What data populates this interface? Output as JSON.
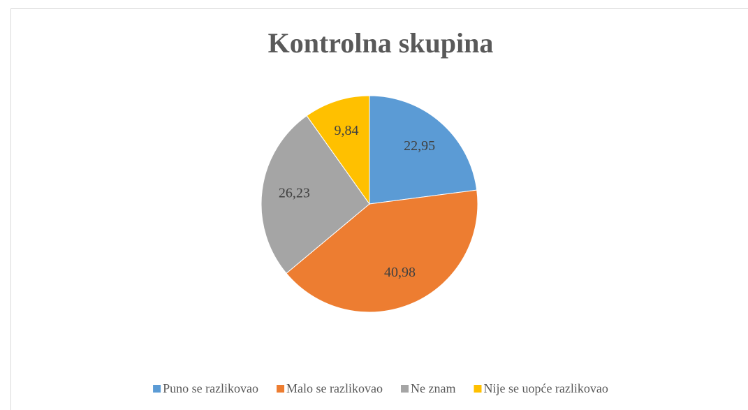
{
  "chart_data": {
    "type": "pie",
    "title": "Kontrolna skupina",
    "categories": [
      "Puno se razlikovao",
      "Malo se razlikovao",
      "Ne znam",
      "Nije se uopće razlikovao"
    ],
    "values": [
      22.95,
      40.98,
      26.23,
      9.84
    ],
    "value_labels": [
      "22,95",
      "40,98",
      "26,23",
      "9,84"
    ],
    "colors": [
      "#5b9bd5",
      "#ed7d31",
      "#a5a5a5",
      "#ffc000"
    ],
    "legend": "bottom"
  }
}
